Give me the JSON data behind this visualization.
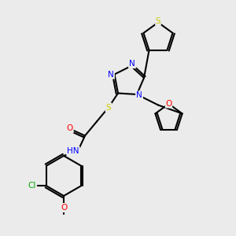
{
  "bg_color": "#ebebeb",
  "bond_color": "#000000",
  "bond_lw": 1.5,
  "atom_colors": {
    "N": "#0000ff",
    "S": "#cccc00",
    "S_thiol": "#cccc00",
    "O": "#ff0000",
    "Cl": "#00aa00",
    "H": "#888888",
    "C": "#000000"
  },
  "font_size": 7.5
}
